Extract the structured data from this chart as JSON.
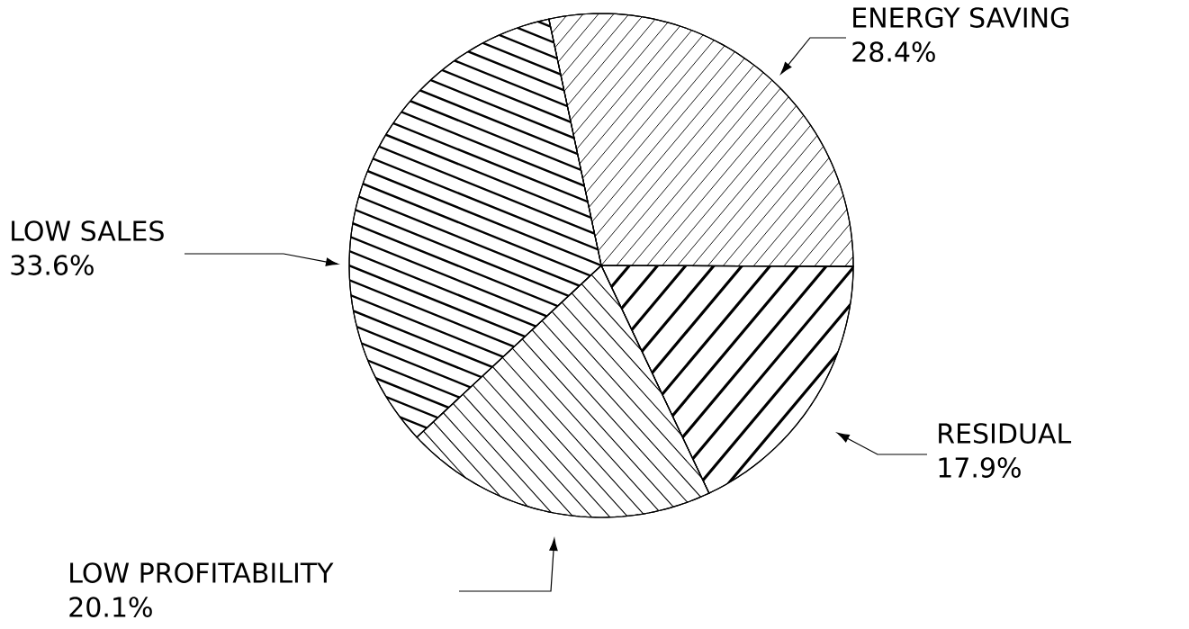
{
  "chart_data": {
    "type": "pie",
    "categories": [
      "ENERGY SAVING",
      "RESIDUAL",
      "LOW PROFITABILITY",
      "LOW SALES"
    ],
    "values": [
      28.4,
      17.9,
      20.1,
      33.6
    ],
    "value_labels": [
      "28.4%",
      "17.9%",
      "20.1%",
      "33.6%"
    ],
    "colors": [
      "#ffffff",
      "#ffffff",
      "#ffffff",
      "#ffffff"
    ]
  }
}
